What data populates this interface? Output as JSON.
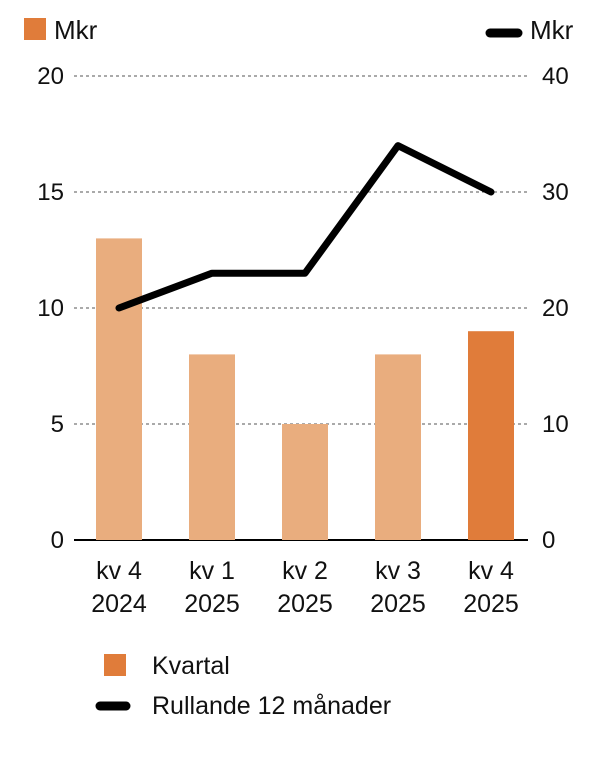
{
  "chart_data": {
    "type": "bar",
    "categories": [
      {
        "line1": "kv 4",
        "line2": "2024"
      },
      {
        "line1": "kv 1",
        "line2": "2025"
      },
      {
        "line1": "kv 2",
        "line2": "2025"
      },
      {
        "line1": "kv 3",
        "line2": "2025"
      },
      {
        "line1": "kv 4",
        "line2": "2025"
      }
    ],
    "series": [
      {
        "name": "Kvartal",
        "type": "bar",
        "axis": "left",
        "values": [
          13,
          8,
          5,
          8,
          9
        ],
        "highlight_index": 4
      },
      {
        "name": "Rullande 12 månader",
        "type": "line",
        "axis": "right",
        "values": [
          20,
          23,
          23,
          34,
          30
        ]
      }
    ],
    "left_axis": {
      "unit": "Mkr",
      "ylim": [
        0,
        20
      ],
      "ticks": [
        "0",
        "5",
        "10",
        "15",
        "20"
      ]
    },
    "right_axis": {
      "unit": "Mkr",
      "ylim": [
        0,
        40
      ],
      "ticks": [
        "0",
        "10",
        "20",
        "30",
        "40"
      ]
    },
    "grid": "dashed horizontal",
    "legend_position": "bottom-left",
    "colors": {
      "bar": "#e9ad7e",
      "bar_highlight": "#e07c3a",
      "line": "#000000",
      "grid": "#555555",
      "unit_swatch": "#e07c3a",
      "text": "#111111"
    }
  }
}
